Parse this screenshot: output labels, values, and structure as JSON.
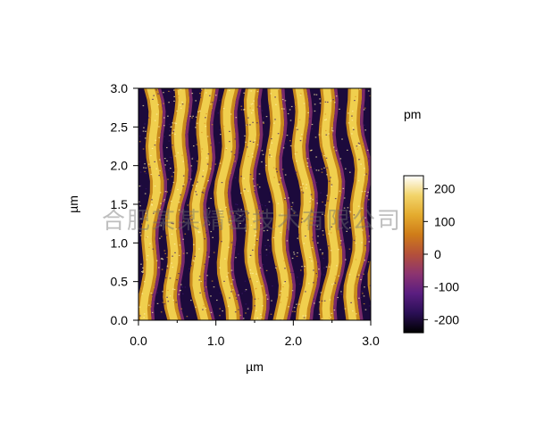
{
  "chart_data": {
    "type": "heatmap",
    "title": "",
    "xlabel": "µm",
    "ylabel": "µm",
    "xlim": [
      0.0,
      3.0
    ],
    "ylim": [
      0.0,
      3.0
    ],
    "x_ticks": [
      0.0,
      1.0,
      2.0,
      3.0
    ],
    "x_tick_labels": [
      "0.0",
      "1.0",
      "2.0",
      "3.0"
    ],
    "y_ticks": [
      0.0,
      0.5,
      1.0,
      1.5,
      2.0,
      2.5,
      3.0
    ],
    "y_tick_labels": [
      "0.0",
      "0.5",
      "1.0",
      "1.5",
      "2.0",
      "2.5",
      "3.0"
    ],
    "image_description_values": {
      "stripe_orientation": "vertical",
      "stripe_count": 9,
      "stripe_period_um": 0.33
    },
    "colorbar": {
      "unit_label": "pm",
      "range": [
        -240,
        240
      ],
      "ticks": [
        200,
        100,
        0,
        -100,
        -200
      ],
      "tick_labels": [
        "200",
        "100",
        "0",
        "-100",
        "-200"
      ],
      "colors": [
        "#000000",
        "#2a0f55",
        "#5a1e80",
        "#8c3470",
        "#b4503a",
        "#cf7c19",
        "#e4ab2e",
        "#f2d46a",
        "#ffffff"
      ]
    }
  },
  "watermark": {
    "text": "合肥某某精密技术有限公司"
  }
}
